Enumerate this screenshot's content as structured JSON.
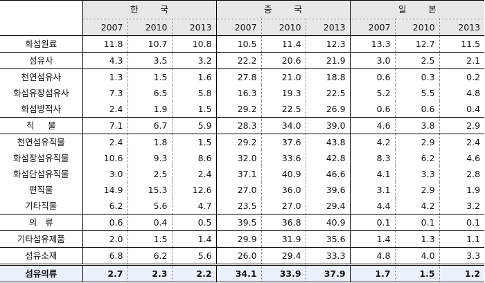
{
  "countries": [
    "한 국",
    "중 국",
    "일 본"
  ],
  "years": [
    "2007",
    "2010",
    "2013",
    "2007",
    "2010",
    "2013",
    "2007",
    "2010",
    "2013"
  ],
  "rows": [
    {
      "label": "화섬원료",
      "values": [
        "11.8",
        "10.7",
        "10.8",
        "10.5",
        "11.4",
        "12.3",
        "13.3",
        "12.7",
        "11.5"
      ]
    },
    {
      "label": "섬유사",
      "values": [
        "4.3",
        "3.5",
        "3.2",
        "22.2",
        "20.6",
        "21.9",
        "3.0",
        "2.5",
        "2.1"
      ]
    },
    {
      "label": "천연섬유사",
      "values": [
        "1.3",
        "1.5",
        "1.6",
        "27.8",
        "21.0",
        "18.8",
        "0.6",
        "0.3",
        "0.2"
      ]
    },
    {
      "label": "화섬유장섬유사",
      "values": [
        "7.3",
        "6.5",
        "5.8",
        "16.3",
        "19.3",
        "22.5",
        "5.2",
        "5.5",
        "4.8"
      ]
    },
    {
      "label": "화섬방적사",
      "values": [
        "2.4",
        "1.9",
        "1.5",
        "29.2",
        "22.5",
        "26.9",
        "0.6",
        "0.6",
        "0.4"
      ]
    },
    {
      "label": "직     물",
      "values": [
        "7.1",
        "6.7",
        "5.9",
        "28.3",
        "34.0",
        "39.0",
        "4.6",
        "3.8",
        "2.9"
      ]
    },
    {
      "label": "천연섬유직물",
      "values": [
        "2.4",
        "1.8",
        "1.5",
        "29.2",
        "37.6",
        "43.8",
        "4.2",
        "2.9",
        "2.4"
      ]
    },
    {
      "label": "화섬장섬유직물",
      "values": [
        "10.6",
        "9.3",
        "8.6",
        "32.0",
        "33.6",
        "42.8",
        "8.3",
        "6.2",
        "4.6"
      ]
    },
    {
      "label": "화섬단섬유직물",
      "values": [
        "3.0",
        "2.5",
        "2.4",
        "37.1",
        "40.9",
        "46.6",
        "4.1",
        "3.3",
        "2.8"
      ]
    },
    {
      "label": "편직물",
      "values": [
        "14.9",
        "15.3",
        "12.6",
        "27.0",
        "36.0",
        "39.6",
        "3.1",
        "2.9",
        "1.9"
      ]
    },
    {
      "label": "기타직물",
      "values": [
        "6.2",
        "5.6",
        "4.7",
        "23.5",
        "27.0",
        "29.4",
        "4.4",
        "4.2",
        "3.2"
      ]
    },
    {
      "label": "의   류",
      "values": [
        "0.6",
        "0.4",
        "0.5",
        "39.5",
        "36.8",
        "40.9",
        "0.1",
        "0.1",
        "0.1"
      ]
    },
    {
      "label": "기타섬유제품",
      "values": [
        "2.0",
        "1.5",
        "1.4",
        "29.9",
        "31.9",
        "35.6",
        "1.4",
        "1.3",
        "1.1"
      ]
    },
    {
      "label": "섬유소재",
      "values": [
        "6.8",
        "6.2",
        "5.6",
        "26.0",
        "29.4",
        "33.3",
        "4.8",
        "4.0",
        "3.3"
      ]
    },
    {
      "label": "섬유의류",
      "values": [
        "2.7",
        "2.3",
        "2.2",
        "34.1",
        "33.9",
        "37.9",
        "1.7",
        "1.5",
        "1.2"
      ]
    }
  ]
}
